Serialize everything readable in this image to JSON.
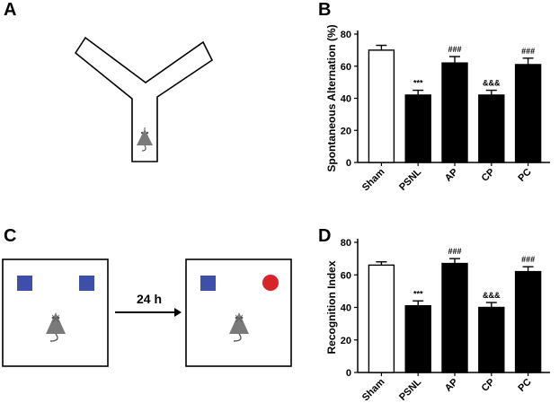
{
  "panels": {
    "a": "A",
    "b": "B",
    "c": "C",
    "d": "D"
  },
  "panel_c": {
    "arrow_label": "24 h",
    "colors": {
      "square": "#3d4fa8",
      "circle": "#d8232a",
      "mouse": "#7a7a7a"
    }
  },
  "chart_data": [
    {
      "type": "bar",
      "title": "",
      "xlabel": "",
      "ylabel": "Spontaneous Alternation (%)",
      "categories": [
        "Sham",
        "PSNL",
        "AP",
        "CP",
        "PC"
      ],
      "values": [
        70,
        42,
        62,
        42,
        61
      ],
      "errors": [
        3,
        3,
        4,
        3,
        4
      ],
      "annotations": [
        "",
        "***",
        "###",
        "&&&",
        "###"
      ],
      "bar_colors": [
        "#ffffff",
        "#000000",
        "#000000",
        "#000000",
        "#000000"
      ],
      "ylim": [
        0,
        80
      ],
      "yticks": [
        0,
        20,
        40,
        60,
        80
      ]
    },
    {
      "type": "bar",
      "title": "",
      "xlabel": "",
      "ylabel": "Recognition Index",
      "categories": [
        "Sham",
        "PSNL",
        "AP",
        "CP",
        "PC"
      ],
      "values": [
        66,
        41,
        67,
        40,
        62
      ],
      "errors": [
        2,
        3,
        3,
        3,
        3
      ],
      "annotations": [
        "",
        "***",
        "###",
        "&&&",
        "###"
      ],
      "bar_colors": [
        "#ffffff",
        "#000000",
        "#000000",
        "#000000",
        "#000000"
      ],
      "ylim": [
        0,
        80
      ],
      "yticks": [
        0,
        20,
        40,
        60,
        80
      ]
    }
  ]
}
